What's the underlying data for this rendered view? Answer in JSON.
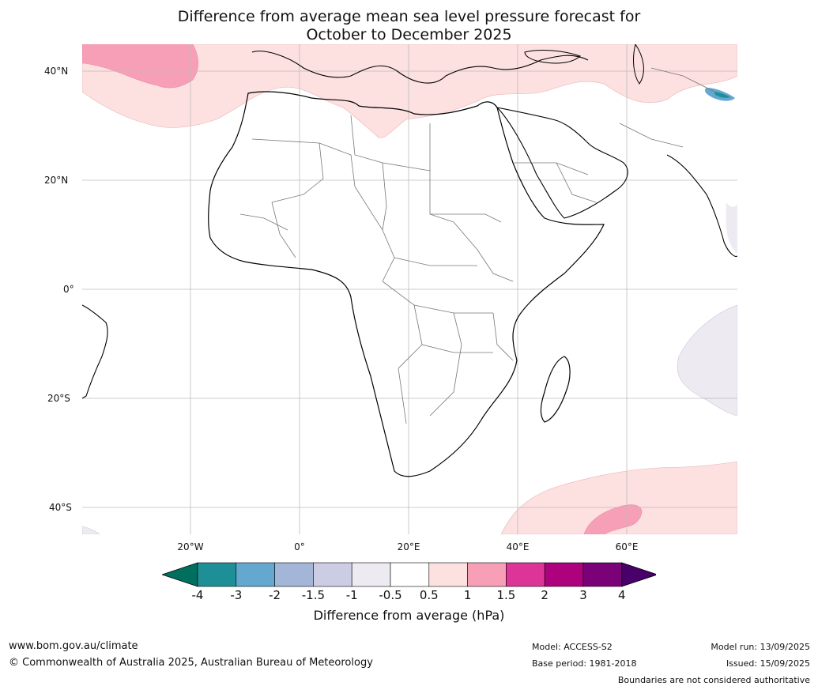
{
  "title": {
    "line1": "Difference from average mean sea level pressure forecast for",
    "line2": "October to December 2025"
  },
  "map": {
    "lat_labels": [
      "40°N",
      "20°N",
      "0°",
      "20°S",
      "40°S"
    ],
    "lon_labels": [
      "20°W",
      "0°",
      "20°E",
      "40°E",
      "60°E"
    ]
  },
  "colorbar": {
    "tick_labels": [
      "-4",
      "-3",
      "-2",
      "-1.5",
      "-1",
      "-0.5",
      "0.5",
      "1",
      "1.5",
      "2",
      "3",
      "4"
    ],
    "colors": [
      "#006f5d",
      "#1e8f96",
      "#64a8d0",
      "#a3b6d8",
      "#cccde4",
      "#eeeaf2",
      "#ffffff",
      "#fde0e0",
      "#f89fb8",
      "#dd3497",
      "#ae017e",
      "#7a0177",
      "#49006a"
    ],
    "title": "Difference from average (hPa)"
  },
  "footer": {
    "website": "www.bom.gov.au/climate",
    "copyright": "© Commonwealth of Australia 2025, Australian Bureau of Meteorology",
    "model": "Model: ACCESS-S2",
    "base_period": "Base period: 1981-2018",
    "model_run": "Model run: 13/09/2025",
    "issued": "Issued: 15/09/2025",
    "disclaimer": "Boundaries are not considered authoritative"
  }
}
